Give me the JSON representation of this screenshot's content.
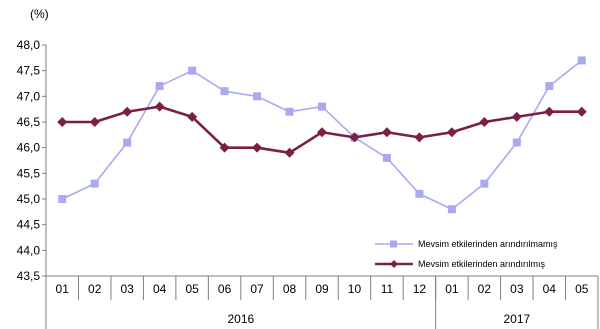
{
  "chart_data": {
    "type": "line",
    "unit_label": "(%)",
    "title": "",
    "xlabel": "",
    "ylabel": "",
    "categories": [
      "01",
      "02",
      "03",
      "04",
      "05",
      "06",
      "07",
      "08",
      "09",
      "10",
      "11",
      "12",
      "01",
      "02",
      "03",
      "04",
      "05"
    ],
    "year_groups": [
      {
        "label": "2016",
        "count": 12
      },
      {
        "label": "2017",
        "count": 5
      }
    ],
    "ylim": [
      43.5,
      48.0
    ],
    "y_ticks": [
      "48,0",
      "47,5",
      "47,0",
      "46,5",
      "46,0",
      "45,5",
      "45,0",
      "44,5",
      "44,0",
      "43,5"
    ],
    "grid": false,
    "legend_position": "bottom-right",
    "series": [
      {
        "name": "Mevsim etkilerinden arındırılmamış",
        "color": "#a9a9f2",
        "marker": "square",
        "values": [
          45.0,
          45.3,
          46.1,
          47.2,
          47.5,
          47.1,
          47.0,
          46.7,
          46.8,
          46.2,
          45.8,
          45.1,
          44.8,
          45.3,
          46.1,
          47.2,
          47.7
        ]
      },
      {
        "name": "Mevsim etkilerinden arındırılmış",
        "color": "#7b1f45",
        "marker": "diamond",
        "values": [
          46.5,
          46.5,
          46.7,
          46.8,
          46.6,
          46.0,
          46.0,
          45.9,
          46.3,
          46.2,
          46.3,
          46.2,
          46.3,
          46.5,
          46.6,
          46.7,
          46.7
        ]
      }
    ]
  }
}
